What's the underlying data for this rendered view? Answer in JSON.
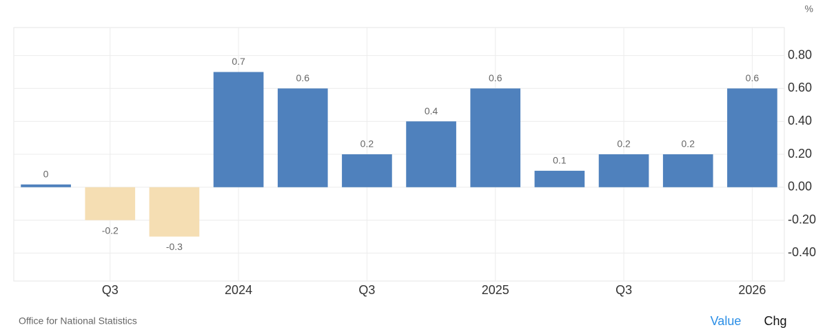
{
  "chart_data": {
    "type": "bar",
    "unit": "%",
    "categories": [
      null,
      "Q3",
      null,
      "2024",
      null,
      "Q3",
      null,
      "2025",
      null,
      "Q3",
      null,
      "2026"
    ],
    "values": [
      0,
      -0.2,
      -0.3,
      0.7,
      0.6,
      0.2,
      0.4,
      0.6,
      0.1,
      0.2,
      0.2,
      0.6
    ],
    "color": "#4f81bd",
    "negative_color": "#f5deb3",
    "ylim": [
      -0.57,
      0.97
    ],
    "yticks": [
      {
        "value": -0.4,
        "label": "-0.40"
      },
      {
        "value": -0.2,
        "label": "-0.20"
      },
      {
        "value": 0,
        "label": "0.00"
      },
      {
        "value": 0.2,
        "label": "0.20"
      },
      {
        "value": 0.4,
        "label": "0.40"
      },
      {
        "value": 0.6,
        "label": "0.60"
      },
      {
        "value": 0.8,
        "label": "0.80"
      }
    ],
    "grid": true,
    "source": "Office for National Statistics",
    "buttons": [
      "Value",
      "Chg"
    ]
  }
}
